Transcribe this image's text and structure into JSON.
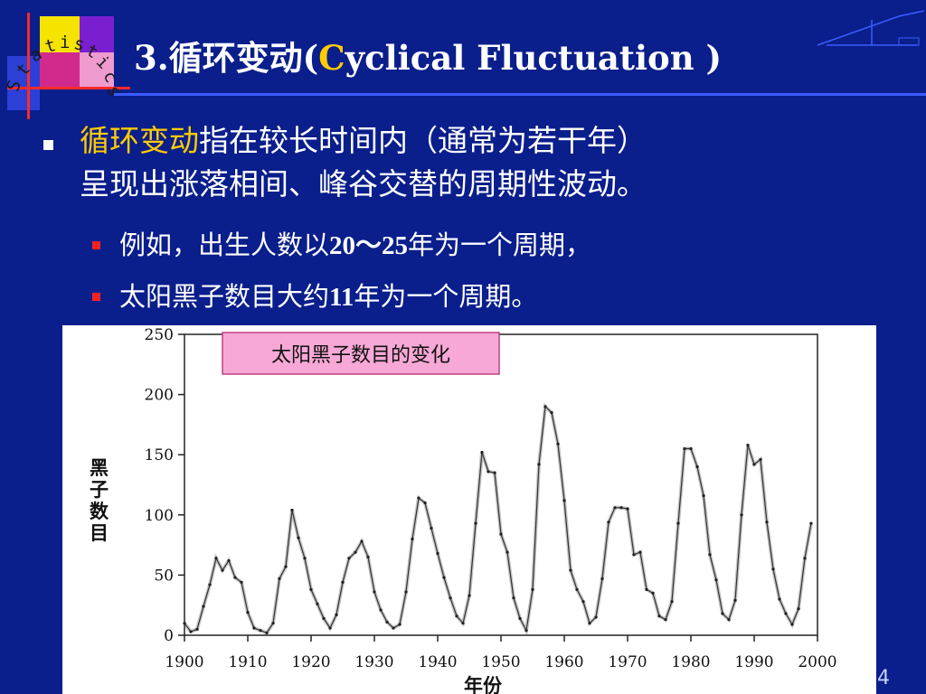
{
  "slide": {
    "title_prefix": "3.循环变动(",
    "title_accent": "C",
    "title_rest": "yclical Fluctuation )",
    "logo_text": "Statistics",
    "page_number": "4",
    "colors": {
      "background": "#0a1e8c",
      "accent": "#ffcc00",
      "bullet_sub": "#ff2020",
      "legend_box": "#f7a8d6"
    }
  },
  "content": {
    "main_highlight": "循环变动",
    "main_rest_line1": "指在较长时间内（通常为若干年）",
    "main_line2": "呈现出涨落相间、峰谷交替的周期性波动。",
    "sub1_a": "例如，出生人数以",
    "sub1_b": "20～25",
    "sub1_c": "年为一个周期，",
    "sub2_a": "太阳黑子数目大约",
    "sub2_b": "11",
    "sub2_c": "年为一个周期。"
  },
  "chart_data": {
    "type": "line",
    "title": "太阳黑子数目的变化",
    "xlabel": "年份",
    "ylabel": "黑子数目",
    "xlim": [
      1900,
      2000
    ],
    "ylim": [
      0,
      250
    ],
    "xticks": [
      "1900",
      "1910",
      "1920",
      "1930",
      "1940",
      "1950",
      "1960",
      "1970",
      "1980",
      "1990",
      "2000"
    ],
    "yticks": [
      "0",
      "50",
      "100",
      "150",
      "200",
      "250"
    ],
    "grid": false,
    "legend": "none",
    "series": [
      {
        "x": [
          1900,
          1901,
          1902,
          1903,
          1904,
          1905,
          1906,
          1907,
          1908,
          1909,
          1910,
          1911,
          1912,
          1913,
          1914,
          1915,
          1916,
          1917,
          1918,
          1919,
          1920,
          1921,
          1922,
          1923,
          1924,
          1925,
          1926,
          1927,
          1928,
          1929,
          1930,
          1931,
          1932,
          1933,
          1934,
          1935,
          1936,
          1937,
          1938,
          1939,
          1940,
          1941,
          1942,
          1943,
          1944,
          1945,
          1946,
          1947,
          1948,
          1949,
          1950,
          1951,
          1952,
          1953,
          1954,
          1955,
          1956,
          1957,
          1958,
          1959,
          1960,
          1961,
          1962,
          1963,
          1964,
          1965,
          1966,
          1967,
          1968,
          1969,
          1970,
          1971,
          1972,
          1973,
          1974,
          1975,
          1976,
          1977,
          1978,
          1979,
          1980,
          1981,
          1982,
          1983,
          1984,
          1985,
          1986,
          1987,
          1988,
          1989,
          1990,
          1991,
          1992,
          1993,
          1994,
          1995,
          1996,
          1997,
          1998,
          1999
        ],
        "values": [
          10,
          3,
          5,
          24,
          42,
          64,
          54,
          62,
          48,
          44,
          19,
          6,
          4,
          2,
          10,
          47,
          57,
          104,
          81,
          64,
          38,
          26,
          14,
          6,
          17,
          44,
          64,
          69,
          78,
          65,
          36,
          21,
          11,
          6,
          9,
          36,
          80,
          114,
          110,
          89,
          68,
          48,
          31,
          16,
          10,
          33,
          93,
          152,
          136,
          135,
          84,
          69,
          31,
          14,
          4,
          38,
          142,
          190,
          185,
          159,
          112,
          54,
          38,
          28,
          10,
          15,
          47,
          94,
          106,
          106,
          105,
          67,
          69,
          38,
          35,
          16,
          13,
          28,
          93,
          155,
          155,
          140,
          116,
          67,
          46,
          18,
          13,
          29,
          100,
          158,
          142,
          146,
          94,
          55,
          30,
          18,
          9,
          22,
          64,
          93
        ]
      }
    ]
  }
}
